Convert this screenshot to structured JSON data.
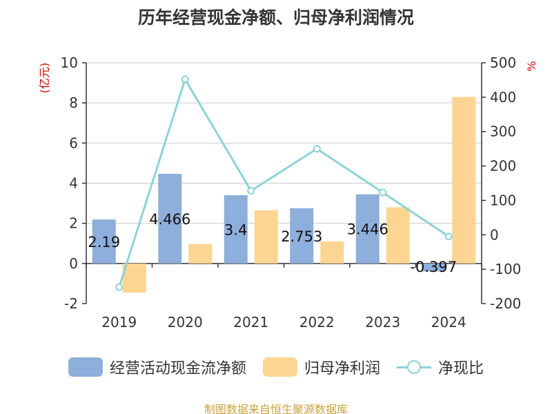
{
  "chart_data": {
    "type": "bar",
    "title": "历年经营现金净额、归母净利润情况",
    "categories": [
      "2019",
      "2020",
      "2021",
      "2022",
      "2023",
      "2024"
    ],
    "series": [
      {
        "name": "经营活动现金流净额",
        "type": "bar",
        "axis": "left",
        "color": "#8eaedb",
        "values": [
          2.19,
          4.466,
          3.4,
          2.753,
          3.446,
          -0.397
        ],
        "data_labels": [
          "2.19",
          "4.466",
          "3.4",
          "2.753",
          "3.446",
          "-0.397"
        ]
      },
      {
        "name": "归母净利润",
        "type": "bar",
        "axis": "left",
        "color": "#fdd592",
        "values": [
          -1.45,
          0.97,
          2.65,
          1.1,
          2.8,
          8.3
        ]
      },
      {
        "name": "净现比",
        "type": "line",
        "axis": "right",
        "color": "#8bd3d6",
        "values": [
          -152,
          452,
          128,
          250,
          123,
          -5
        ]
      }
    ],
    "left_axis": {
      "label": "(亿元)",
      "ylim": [
        -2,
        10
      ],
      "ticks": [
        "-2",
        "0",
        "2",
        "4",
        "6",
        "8",
        "10"
      ]
    },
    "right_axis": {
      "label": "%",
      "ylim": [
        -200,
        500
      ],
      "ticks": [
        "-200",
        "-100",
        "0",
        "100",
        "200",
        "300",
        "400",
        "500"
      ]
    },
    "grid": true,
    "legend_position": "bottom"
  },
  "source_text": "制图数据来自恒生聚源数据库"
}
